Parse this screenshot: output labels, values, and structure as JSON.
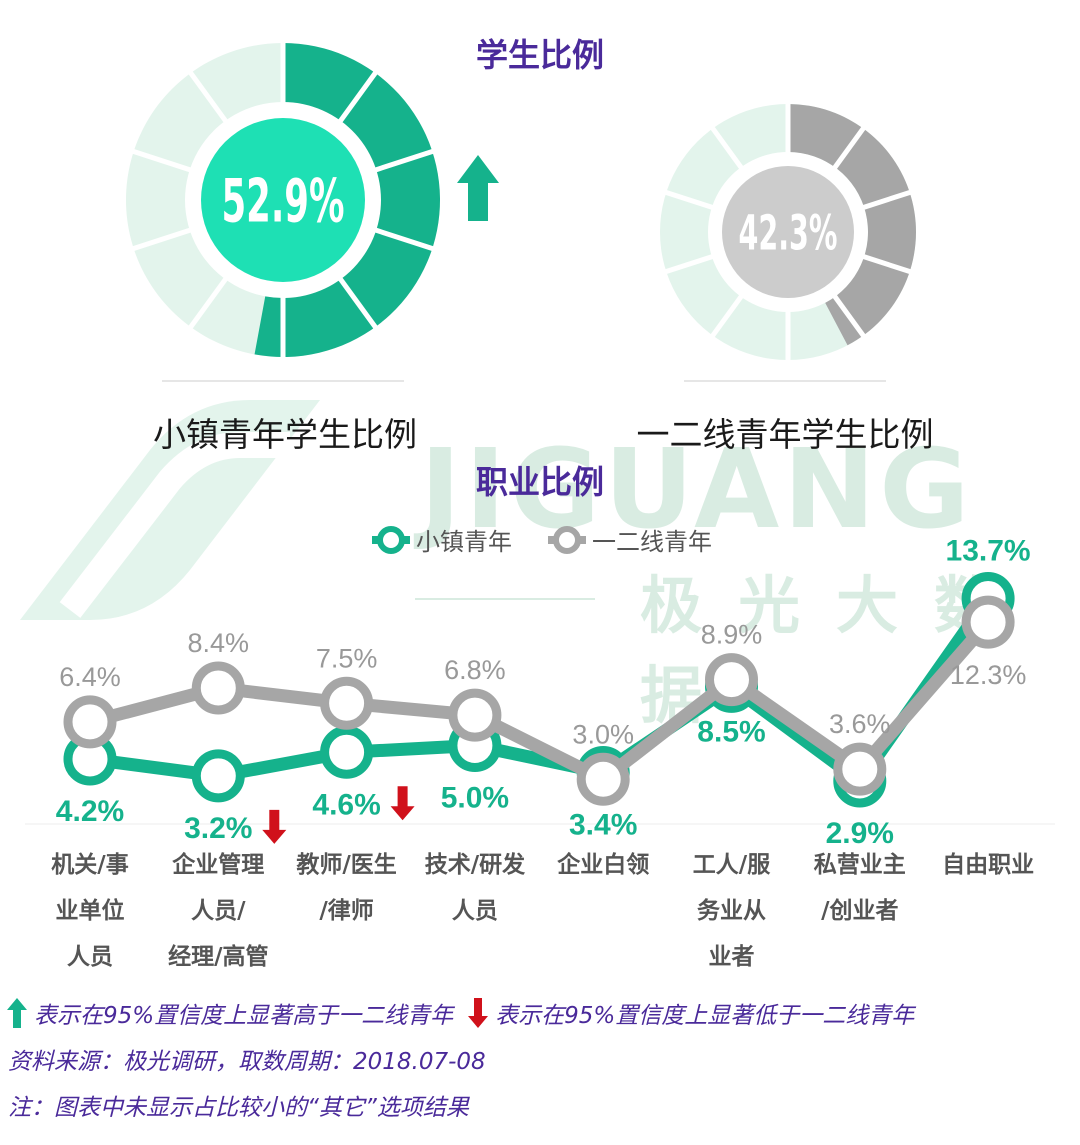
{
  "titles": {
    "student_ratio": "学生比例",
    "occupation_ratio": "职业比例"
  },
  "watermark": {
    "brand": "JIGUANG",
    "brand_cn": "极光大数据"
  },
  "chart_data": [
    {
      "type": "donut",
      "title": "学生比例",
      "series": [
        {
          "name": "小镇青年学生比例",
          "value": 52.9,
          "label": "52.9%",
          "indicator": "up",
          "color": "#15b28c",
          "center_color": "#1ee0b4",
          "track_color": "#e3f4ec"
        },
        {
          "name": "一二线青年学生比例",
          "value": 42.3,
          "label": "42.3%",
          "indicator": "none",
          "color": "#a6a6a6",
          "center_color": "#cccccc",
          "track_color": "#e3f4ec"
        }
      ]
    },
    {
      "type": "line",
      "title": "职业比例",
      "categories": [
        "机关/事\n业单位\n人员",
        "企业管理\n人员/\n经理/高管",
        "教师/医生\n/律师",
        "技术/研发\n人员",
        "企业白领",
        "工人/服\n务业从\n业者",
        "私营业主\n/创业者",
        "自由职业"
      ],
      "series": [
        {
          "name": "小镇青年",
          "color": "#15b28c",
          "values": [
            4.2,
            3.2,
            4.6,
            5.0,
            3.4,
            8.5,
            2.9,
            13.7
          ],
          "labels": [
            "4.2%",
            "3.2%",
            "4.6%",
            "5.0%",
            "3.4%",
            "8.5%",
            "2.9%",
            "13.7%"
          ],
          "indicators": [
            "",
            "down",
            "down",
            "",
            "",
            "",
            "",
            ""
          ]
        },
        {
          "name": "一二线青年",
          "color": "#a6a6a6",
          "values": [
            6.4,
            8.4,
            7.5,
            6.8,
            3.0,
            8.9,
            3.6,
            12.3
          ],
          "labels": [
            "6.4%",
            "8.4%",
            "7.5%",
            "6.8%",
            "3.0%",
            "8.9%",
            "3.6%",
            "12.3%"
          ]
        }
      ],
      "legend": "top-center",
      "grid": false
    }
  ],
  "footer": {
    "up_note": "表示在95%置信度上显著高于一二线青年",
    "down_note": "表示在95%置信度上显著低于一二线青年",
    "source": "资料来源：极光调研，取数周期：2018.07-08",
    "note": "注：图表中未显示占比较小的“其它”选项结果"
  },
  "colors": {
    "accent_green": "#15b28c",
    "gray": "#a6a6a6",
    "title_purple": "#4a2a9a",
    "down_red": "#d0111b"
  }
}
